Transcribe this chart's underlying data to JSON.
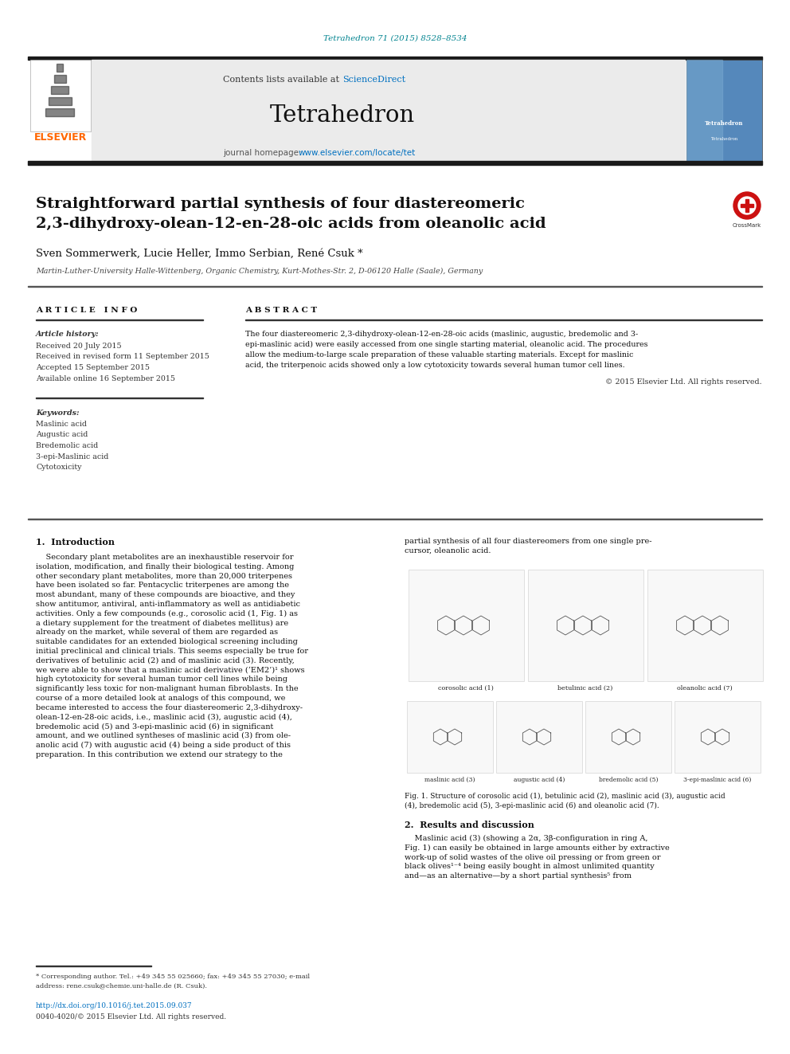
{
  "doi_text": "Tetrahedron 71 (2015) 8528–8534",
  "doi_color": "#00838F",
  "journal_name": "Tetrahedron",
  "contents_text": "Contents lists available at ",
  "sciencedirect_text": "ScienceDirect",
  "sciencedirect_color": "#0070C0",
  "homepage_text": "journal homepage: ",
  "homepage_url": "www.elsevier.com/locate/tet",
  "homepage_url_color": "#0070C0",
  "title_line1": "Straightforward partial synthesis of four diastereomeric",
  "title_line2": "2,3-dihydroxy-olean-12-en-28-oic acids from oleanolic acid",
  "authors": "Sven Sommerwerk, Lucie Heller, Immo Serbian, René Csuk *",
  "affiliation": "Martin-Luther-University Halle-Wittenberg, Organic Chemistry, Kurt-Mothes-Str. 2, D-06120 Halle (Saale), Germany",
  "article_info_header": "A R T I C L E   I N F O",
  "abstract_header": "A B S T R A C T",
  "article_history_label": "Article history:",
  "history_lines": [
    "Received 20 July 2015",
    "Received in revised form 11 September 2015",
    "Accepted 15 September 2015",
    "Available online 16 September 2015"
  ],
  "keywords_label": "Keywords:",
  "keywords": [
    "Maslinic acid",
    "Augustic acid",
    "Bredemolic acid",
    "3-epi-Maslinic acid",
    "Cytotoxicity"
  ],
  "abstract_lines": [
    "The four diastereomeric 2,3-dihydroxy-olean-12-en-28-oic acids (maslinic, augustic, bredemolic and 3-",
    "epi-maslinic acid) were easily accessed from one single starting material, oleanolic acid. The procedures",
    "allow the medium-to-large scale preparation of these valuable starting materials. Except for maslinic",
    "acid, the triterpenoic acids showed only a low cytotoxicity towards several human tumor cell lines."
  ],
  "copyright_text": "© 2015 Elsevier Ltd. All rights reserved.",
  "intro_header": "1.  Introduction",
  "intro_lines": [
    "    Secondary plant metabolites are an inexhaustible reservoir for",
    "isolation, modification, and finally their biological testing. Among",
    "other secondary plant metabolites, more than 20,000 triterpenes",
    "have been isolated so far. Pentacyclic triterpenes are among the",
    "most abundant, many of these compounds are bioactive, and they",
    "show antitumor, antiviral, anti-inflammatory as well as antidiabetic",
    "activities. Only a few compounds (e.g., corosolic acid (1, Fig. 1) as",
    "a dietary supplement for the treatment of diabetes mellitus) are",
    "already on the market, while several of them are regarded as",
    "suitable candidates for an extended biological screening including",
    "initial preclinical and clinical trials. This seems especially be true for",
    "derivatives of betulinic acid (2) and of maslinic acid (3). Recently,",
    "we were able to show that a maslinic acid derivative (‘EM2’)¹ shows",
    "high cytotoxicity for several human tumor cell lines while being",
    "significantly less toxic for non-malignant human fibroblasts. In the",
    "course of a more detailed look at analogs of this compound, we",
    "became interested to access the four diastereomeric 2,3-dihydroxy-",
    "olean-12-en-28-oic acids, i.e., maslinic acid (3), augustic acid (4),",
    "bredemolic acid (5) and 3-epi-maslinic acid (6) in significant",
    "amount, and we outlined syntheses of maslinic acid (3) from ole-",
    "anolic acid (7) with augustic acid (4) being a side product of this",
    "preparation. In this contribution we extend our strategy to the"
  ],
  "right_col_lines": [
    "partial synthesis of all four diastereomers from one single pre-",
    "cursor, oleanolic acid."
  ],
  "struct_labels_row1": [
    "corosolic acid (1)",
    "betulinic acid (2)",
    "oleanolic acid (7)"
  ],
  "struct_labels_row2": [
    "maslinic acid (3)",
    "augustic acid (4)",
    "bredemolic acid (5)",
    "3-epi-maslinic acid (6)"
  ],
  "fig1_caption_lines": [
    "Fig. 1. Structure of corosolic acid (1), betulinic acid (2), maslinic acid (3), augustic acid",
    "(4), bredemolic acid (5), 3-epi-maslinic acid (6) and oleanolic acid (7)."
  ],
  "results_header": "2.  Results and discussion",
  "results_lines": [
    "    Maslinic acid (3) (showing a 2α, 3β-configuration in ring A,",
    "Fig. 1) can easily be obtained in large amounts either by extractive",
    "work-up of solid wastes of the olive oil pressing or from green or",
    "black olives¹⁻⁴ being easily bought in almost unlimited quantity",
    "and—as an alternative—by a short partial synthesis⁵ from"
  ],
  "footnote_lines": [
    "* Corresponding author. Tel.: +49 345 55 025660; fax: +49 345 55 27030; e-mail",
    "address: rene.csuk@chemie.uni-halle.de (R. Csuk)."
  ],
  "doi_link": "http://dx.doi.org/10.1016/j.tet.2015.09.037",
  "doi_link_color": "#0070C0",
  "issn_text": "0040-4020/© 2015 Elsevier Ltd. All rights reserved.",
  "header_bar_color": "#1A1A1A",
  "elsevier_color": "#FF6600",
  "light_gray_bg": "#EBEBEB",
  "page_bg": "#FFFFFF"
}
